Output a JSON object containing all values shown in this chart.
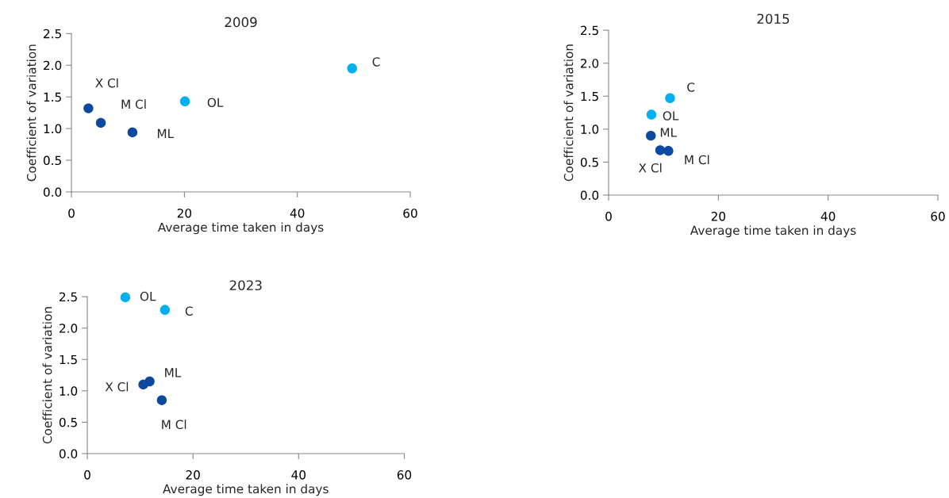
{
  "chart_data": [
    {
      "type": "scatter",
      "title": "2009",
      "xlabel": "Average time taken in days",
      "ylabel": "Coefficient of variation",
      "marker": "circle",
      "xlim": [
        0,
        60
      ],
      "xticks": [
        0,
        20,
        40,
        60
      ],
      "ylim": [
        0,
        2.5
      ],
      "yticks": [
        {
          "value": 0,
          "label": "0.0"
        },
        {
          "value": 0.5,
          "label": "0.5"
        },
        {
          "value": 1,
          "label": "1.0"
        },
        {
          "value": 1.5,
          "label": "1.5"
        },
        {
          "value": 2,
          "label": "2.0"
        },
        {
          "value": 2.5,
          "label": "2.5"
        }
      ],
      "series": [
        {
          "name": "X Cl",
          "color": "#0d4a9f",
          "x": [
            3.0
          ],
          "values": [
            1.32
          ]
        },
        {
          "name": "M Cl",
          "color": "#0d4a9f",
          "x": [
            5.2
          ],
          "values": [
            1.09
          ]
        },
        {
          "name": "ML",
          "color": "#0d4a9f",
          "x": [
            10.8
          ],
          "values": [
            0.94
          ]
        },
        {
          "name": "OL",
          "color": "#00b0f0",
          "x": [
            20.1
          ],
          "values": [
            1.43
          ]
        },
        {
          "name": "C",
          "color": "#00b0f0",
          "x": [
            49.7
          ],
          "values": [
            1.95
          ]
        }
      ]
    },
    {
      "type": "scatter",
      "title": "2015",
      "xlabel": "Average time taken in days",
      "ylabel": "Coefficient of variation",
      "marker": "circle",
      "xlim": [
        0,
        60
      ],
      "xticks": [
        0,
        20,
        40,
        60
      ],
      "ylim": [
        0,
        2.5
      ],
      "yticks": [
        {
          "value": 0,
          "label": "0.0"
        },
        {
          "value": 0.5,
          "label": "0.5"
        },
        {
          "value": 1,
          "label": "1.0"
        },
        {
          "value": 1.5,
          "label": "1.5"
        },
        {
          "value": 2,
          "label": "2.0"
        },
        {
          "value": 2.5,
          "label": "2.5"
        }
      ],
      "series": [
        {
          "name": "C",
          "color": "#00b0f0",
          "x": [
            11.2
          ],
          "values": [
            1.47
          ]
        },
        {
          "name": "OL",
          "color": "#00b0f0",
          "x": [
            7.8
          ],
          "values": [
            1.22
          ]
        },
        {
          "name": "ML",
          "color": "#0d4a9f",
          "x": [
            7.7
          ],
          "values": [
            0.9
          ]
        },
        {
          "name": "X Cl",
          "color": "#0d4a9f",
          "x": [
            9.4
          ],
          "values": [
            0.68
          ]
        },
        {
          "name": "M Cl",
          "color": "#0d4a9f",
          "x": [
            10.9
          ],
          "values": [
            0.67
          ]
        }
      ]
    },
    {
      "type": "scatter",
      "title": "2023",
      "xlabel": "Average time taken in days",
      "ylabel": "Coefficient of variation",
      "marker": "circle",
      "xlim": [
        0,
        60
      ],
      "xticks": [
        0,
        20,
        40,
        60
      ],
      "ylim": [
        0,
        2.5
      ],
      "yticks": [
        {
          "value": 0,
          "label": "0.0"
        },
        {
          "value": 0.5,
          "label": "0.5"
        },
        {
          "value": 1,
          "label": "1.0"
        },
        {
          "value": 1.5,
          "label": "1.5"
        },
        {
          "value": 2,
          "label": "2.0"
        },
        {
          "value": 2.5,
          "label": "2.5"
        }
      ],
      "series": [
        {
          "name": "OL",
          "color": "#00b0f0",
          "x": [
            7.2
          ],
          "values": [
            2.49
          ]
        },
        {
          "name": "C",
          "color": "#00b0f0",
          "x": [
            14.7
          ],
          "values": [
            2.29
          ]
        },
        {
          "name": "X Cl",
          "color": "#0d4a9f",
          "x": [
            10.6
          ],
          "values": [
            1.1
          ]
        },
        {
          "name": "ML",
          "color": "#0d4a9f",
          "x": [
            11.8
          ],
          "values": [
            1.15
          ]
        },
        {
          "name": "M Cl",
          "color": "#0d4a9f",
          "x": [
            14.1
          ],
          "values": [
            0.85
          ]
        }
      ]
    }
  ]
}
